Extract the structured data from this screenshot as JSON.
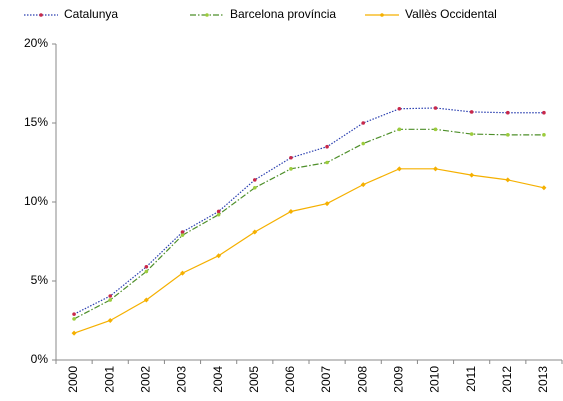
{
  "chart_data": {
    "type": "line",
    "categories": [
      "2000",
      "2001",
      "2002",
      "2003",
      "2004",
      "2005",
      "2006",
      "2007",
      "2008",
      "2009",
      "2010",
      "2011",
      "2012",
      "2013"
    ],
    "series": [
      {
        "name": "Catalunya",
        "color": "#2a3fb0",
        "marker_color": "#c8284a",
        "line_style": "dotted",
        "values": [
          2.9,
          4.05,
          5.9,
          8.1,
          9.4,
          11.4,
          12.8,
          13.5,
          15.0,
          15.9,
          15.95,
          15.7,
          15.65,
          15.65
        ]
      },
      {
        "name": "Barcelona província",
        "color": "#4e8f2a",
        "marker_color": "#9ccc3c",
        "line_style": "dashdot",
        "values": [
          2.6,
          3.8,
          5.6,
          7.9,
          9.2,
          10.9,
          12.1,
          12.5,
          13.7,
          14.6,
          14.6,
          14.3,
          14.25,
          14.25
        ]
      },
      {
        "name": "Vallès Occidental",
        "color": "#f5b000",
        "marker_color": "#f5b000",
        "line_style": "solid",
        "values": [
          1.7,
          2.5,
          3.8,
          5.5,
          6.6,
          8.1,
          9.4,
          9.9,
          11.1,
          12.1,
          12.1,
          11.7,
          11.4,
          10.9
        ]
      }
    ],
    "ylim": [
      0,
      20
    ],
    "yticks": [
      {
        "value": 0,
        "label": "0%"
      },
      {
        "value": 5,
        "label": "5%"
      },
      {
        "value": 10,
        "label": "10%"
      },
      {
        "value": 15,
        "label": "15%"
      },
      {
        "value": 20,
        "label": "20%"
      }
    ],
    "grid": false,
    "legend": "top"
  }
}
